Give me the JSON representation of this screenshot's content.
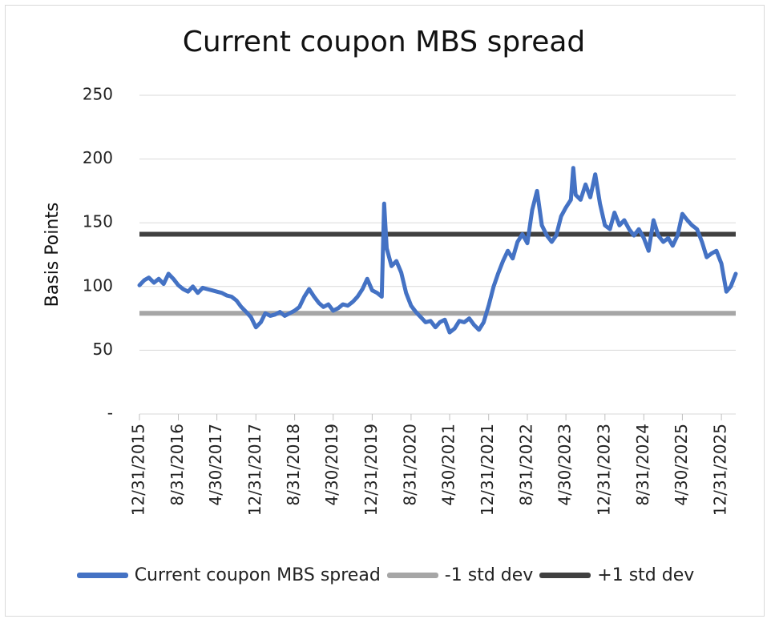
{
  "chart_data": {
    "type": "line",
    "title": "Current coupon MBS spread",
    "ylabel": "Basis Points",
    "ylim": [
      0,
      250
    ],
    "yticks": [
      {
        "value": 0,
        "label": "-"
      },
      {
        "value": 50,
        "label": "50"
      },
      {
        "value": 100,
        "label": "100"
      },
      {
        "value": 150,
        "label": "150"
      },
      {
        "value": 200,
        "label": "200"
      },
      {
        "value": 250,
        "label": "250"
      }
    ],
    "xlim": [
      "12/31/2015",
      "3/31/2026"
    ],
    "xticks": [
      "12/31/2015",
      "8/31/2016",
      "4/30/2017",
      "12/31/2017",
      "8/31/2018",
      "4/30/2019",
      "12/31/2019",
      "8/31/2020",
      "4/30/2021",
      "12/31/2021",
      "8/31/2022",
      "4/30/2023",
      "12/31/2023",
      "8/31/2024",
      "4/30/2025",
      "12/31/2025"
    ],
    "grid": true,
    "legend": "bottom",
    "series": [
      {
        "name": "Current coupon MBS spread",
        "color": "#4472c4",
        "points": [
          [
            "12/31/2015",
            101
          ],
          [
            "1/31/2016",
            105
          ],
          [
            "2/28/2016",
            107
          ],
          [
            "3/31/2016",
            103
          ],
          [
            "4/30/2016",
            106
          ],
          [
            "5/31/2016",
            102
          ],
          [
            "6/30/2016",
            110
          ],
          [
            "7/31/2016",
            106
          ],
          [
            "8/31/2016",
            101
          ],
          [
            "9/30/2016",
            98
          ],
          [
            "10/31/2016",
            96
          ],
          [
            "11/30/2016",
            100
          ],
          [
            "12/31/2016",
            95
          ],
          [
            "1/31/2017",
            99
          ],
          [
            "2/28/2017",
            98
          ],
          [
            "3/31/2017",
            97
          ],
          [
            "4/30/2017",
            96
          ],
          [
            "5/31/2017",
            95
          ],
          [
            "6/30/2017",
            93
          ],
          [
            "7/31/2017",
            92
          ],
          [
            "8/31/2017",
            89
          ],
          [
            "9/30/2017",
            84
          ],
          [
            "10/31/2017",
            80
          ],
          [
            "11/30/2017",
            76
          ],
          [
            "12/31/2017",
            68
          ],
          [
            "1/31/2018",
            72
          ],
          [
            "2/28/2018",
            79
          ],
          [
            "3/31/2018",
            77
          ],
          [
            "4/30/2018",
            78
          ],
          [
            "5/31/2018",
            80
          ],
          [
            "6/30/2018",
            77
          ],
          [
            "7/31/2018",
            79
          ],
          [
            "8/31/2018",
            81
          ],
          [
            "9/30/2018",
            84
          ],
          [
            "10/31/2018",
            92
          ],
          [
            "11/30/2018",
            98
          ],
          [
            "12/31/2018",
            92
          ],
          [
            "1/31/2019",
            87
          ],
          [
            "2/28/2019",
            84
          ],
          [
            "3/31/2019",
            86
          ],
          [
            "4/30/2019",
            81
          ],
          [
            "5/31/2019",
            83
          ],
          [
            "6/30/2019",
            86
          ],
          [
            "7/31/2019",
            85
          ],
          [
            "8/31/2019",
            88
          ],
          [
            "9/30/2019",
            92
          ],
          [
            "10/31/2019",
            98
          ],
          [
            "11/30/2019",
            106
          ],
          [
            "12/31/2019",
            97
          ],
          [
            "1/31/2020",
            95
          ],
          [
            "2/29/2020",
            92
          ],
          [
            "3/15/2020",
            165
          ],
          [
            "3/31/2020",
            130
          ],
          [
            "4/30/2020",
            116
          ],
          [
            "5/31/2020",
            120
          ],
          [
            "6/30/2020",
            111
          ],
          [
            "7/31/2020",
            95
          ],
          [
            "8/31/2020",
            85
          ],
          [
            "9/30/2020",
            80
          ],
          [
            "10/31/2020",
            76
          ],
          [
            "11/30/2020",
            72
          ],
          [
            "12/31/2020",
            73
          ],
          [
            "1/31/2021",
            68
          ],
          [
            "2/28/2021",
            72
          ],
          [
            "3/31/2021",
            74
          ],
          [
            "4/30/2021",
            64
          ],
          [
            "5/31/2021",
            67
          ],
          [
            "6/30/2021",
            73
          ],
          [
            "7/31/2021",
            72
          ],
          [
            "8/31/2021",
            75
          ],
          [
            "9/30/2021",
            70
          ],
          [
            "10/31/2021",
            66
          ],
          [
            "11/30/2021",
            72
          ],
          [
            "12/31/2021",
            85
          ],
          [
            "1/31/2022",
            100
          ],
          [
            "2/28/2022",
            110
          ],
          [
            "3/31/2022",
            120
          ],
          [
            "4/30/2022",
            128
          ],
          [
            "5/31/2022",
            122
          ],
          [
            "6/30/2022",
            135
          ],
          [
            "7/31/2022",
            141
          ],
          [
            "8/31/2022",
            134
          ],
          [
            "9/30/2022",
            160
          ],
          [
            "10/31/2022",
            175
          ],
          [
            "11/30/2022",
            148
          ],
          [
            "12/31/2022",
            140
          ],
          [
            "1/31/2023",
            135
          ],
          [
            "2/28/2023",
            140
          ],
          [
            "3/31/2023",
            155
          ],
          [
            "4/30/2023",
            162
          ],
          [
            "5/31/2023",
            168
          ],
          [
            "6/15/2023",
            193
          ],
          [
            "6/30/2023",
            172
          ],
          [
            "7/31/2023",
            168
          ],
          [
            "8/31/2023",
            180
          ],
          [
            "9/30/2023",
            170
          ],
          [
            "10/31/2023",
            188
          ],
          [
            "11/30/2023",
            165
          ],
          [
            "12/31/2023",
            148
          ],
          [
            "1/31/2024",
            145
          ],
          [
            "2/29/2024",
            158
          ],
          [
            "3/31/2024",
            148
          ],
          [
            "4/30/2024",
            152
          ],
          [
            "5/31/2024",
            145
          ],
          [
            "6/30/2024",
            140
          ],
          [
            "7/31/2024",
            145
          ],
          [
            "8/31/2024",
            138
          ],
          [
            "9/30/2024",
            128
          ],
          [
            "10/31/2024",
            152
          ],
          [
            "11/30/2024",
            140
          ],
          [
            "12/31/2024",
            135
          ],
          [
            "1/31/2025",
            138
          ],
          [
            "2/28/2025",
            132
          ],
          [
            "3/31/2025",
            140
          ],
          [
            "4/30/2025",
            157
          ],
          [
            "5/31/2025",
            152
          ],
          [
            "6/30/2025",
            148
          ],
          [
            "7/31/2025",
            145
          ],
          [
            "8/31/2025",
            135
          ],
          [
            "9/30/2025",
            123
          ],
          [
            "10/31/2025",
            126
          ],
          [
            "11/30/2025",
            128
          ],
          [
            "12/31/2025",
            118
          ],
          [
            "1/31/2026",
            96
          ],
          [
            "2/28/2026",
            100
          ],
          [
            "3/31/2026",
            110
          ]
        ]
      },
      {
        "name": "-1 std dev",
        "color": "#a6a6a6",
        "constant": 79
      },
      {
        "name": "+1 std dev",
        "color": "#404040",
        "constant": 141
      }
    ]
  }
}
